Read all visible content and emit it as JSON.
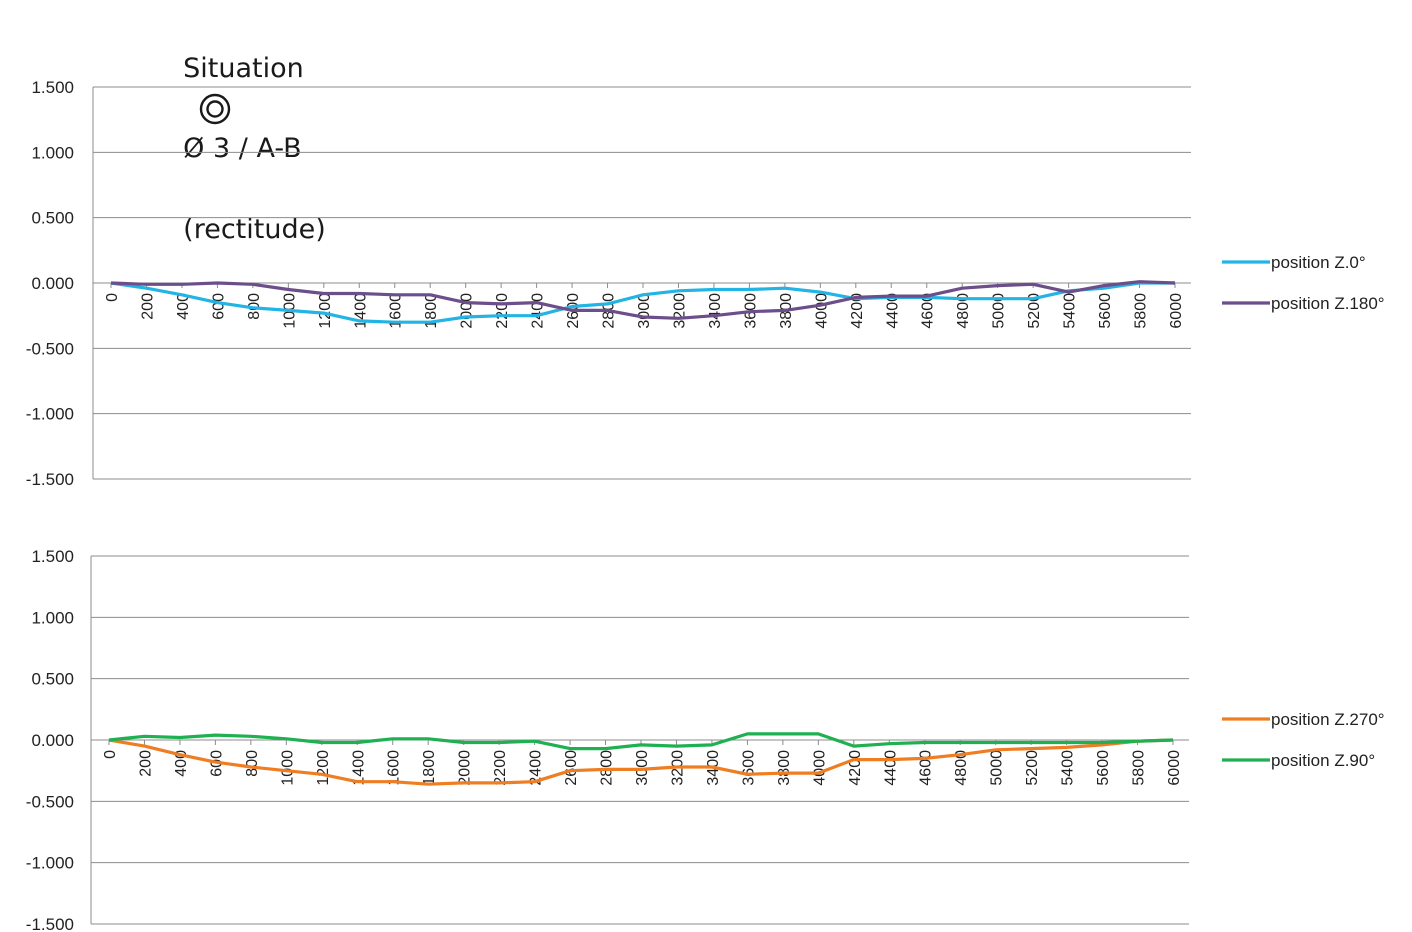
{
  "title": {
    "prefix": "Situation",
    "symbol": "concentricity-icon",
    "rest": "Ø 3 / A-B",
    "suffix": "(rectitude)"
  },
  "chart_data": [
    {
      "type": "line",
      "title": "",
      "xlabel": "",
      "ylabel": "",
      "categories": [
        "0",
        "200",
        "400",
        "600",
        "800",
        "1000",
        "1200",
        "1400",
        "1600",
        "1800",
        "2000",
        "2200",
        "2400",
        "2600",
        "2800",
        "3000",
        "3200",
        "3400",
        "3600",
        "3800",
        "4000",
        "4200",
        "4400",
        "4600",
        "4800",
        "5000",
        "5200",
        "5400",
        "5600",
        "5800",
        "6000"
      ],
      "ylim": [
        -1.5,
        1.5
      ],
      "yticks": [
        "1.500",
        "1.000",
        "0.500",
        "0.000",
        "-0.500",
        "-1.000",
        "-1.500"
      ],
      "grid": "horizontal",
      "legend": "right",
      "series": [
        {
          "name": "position Z.0°",
          "color": "#22b4e4",
          "values": [
            0.0,
            -0.04,
            -0.09,
            -0.15,
            -0.19,
            -0.21,
            -0.23,
            -0.29,
            -0.3,
            -0.3,
            -0.26,
            -0.25,
            -0.25,
            -0.18,
            -0.16,
            -0.09,
            -0.06,
            -0.05,
            -0.05,
            -0.04,
            -0.07,
            -0.12,
            -0.11,
            -0.11,
            -0.12,
            -0.12,
            -0.12,
            -0.06,
            -0.04,
            0.0,
            0.0
          ]
        },
        {
          "name": "position Z.180°",
          "color": "#6b4e8a",
          "values": [
            0.0,
            -0.01,
            -0.01,
            0.0,
            -0.01,
            -0.05,
            -0.08,
            -0.08,
            -0.09,
            -0.09,
            -0.15,
            -0.16,
            -0.15,
            -0.21,
            -0.21,
            -0.26,
            -0.27,
            -0.25,
            -0.22,
            -0.21,
            -0.17,
            -0.11,
            -0.1,
            -0.1,
            -0.04,
            -0.02,
            -0.01,
            -0.07,
            -0.02,
            0.01,
            0.0
          ]
        }
      ]
    },
    {
      "type": "line",
      "title": "",
      "xlabel": "",
      "ylabel": "",
      "categories": [
        "0",
        "200",
        "400",
        "600",
        "800",
        "1000",
        "1200",
        "1400",
        "1600",
        "1800",
        "2000",
        "2200",
        "2400",
        "2600",
        "2800",
        "3000",
        "3200",
        "3400",
        "3600",
        "3800",
        "4000",
        "4200",
        "4400",
        "4600",
        "4800",
        "5000",
        "5200",
        "5400",
        "5600",
        "5800",
        "6000"
      ],
      "ylim": [
        -1.5,
        1.5
      ],
      "yticks": [
        "1.500",
        "1.000",
        "0.500",
        "0.000",
        "-0.500",
        "-1.000",
        "-1.500"
      ],
      "grid": "horizontal",
      "legend": "right",
      "series": [
        {
          "name": "position Z.270°",
          "color": "#ef7d22",
          "values": [
            0.0,
            -0.05,
            -0.12,
            -0.18,
            -0.22,
            -0.25,
            -0.28,
            -0.34,
            -0.34,
            -0.36,
            -0.35,
            -0.35,
            -0.34,
            -0.25,
            -0.24,
            -0.24,
            -0.22,
            -0.22,
            -0.28,
            -0.27,
            -0.27,
            -0.16,
            -0.16,
            -0.15,
            -0.12,
            -0.08,
            -0.07,
            -0.06,
            -0.04,
            -0.01,
            0.0
          ]
        },
        {
          "name": "position Z.90°",
          "color": "#1fb051",
          "values": [
            0.0,
            0.03,
            0.02,
            0.04,
            0.03,
            0.01,
            -0.02,
            -0.02,
            0.01,
            0.01,
            -0.02,
            -0.02,
            -0.01,
            -0.07,
            -0.07,
            -0.04,
            -0.05,
            -0.04,
            0.05,
            0.05,
            0.05,
            -0.05,
            -0.03,
            -0.02,
            -0.02,
            -0.02,
            -0.02,
            -0.02,
            -0.02,
            -0.01,
            0.0
          ]
        }
      ]
    }
  ]
}
